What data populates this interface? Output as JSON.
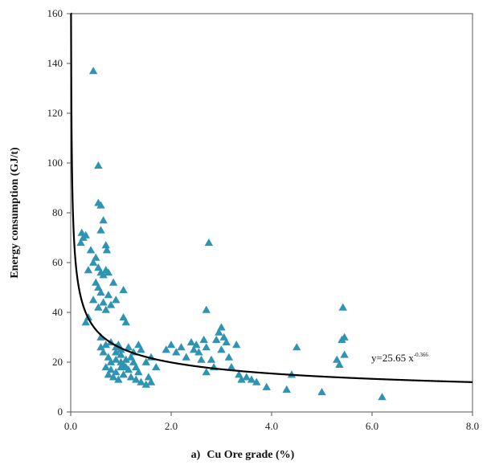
{
  "chart_data": {
    "type": "scatter",
    "title": "",
    "xlabel": "Cu Ore grade (%)",
    "xlabel_prefix": "a)",
    "ylabel": "Energy consumption (GJ/t)",
    "xlim": [
      0,
      8
    ],
    "ylim": [
      0,
      160
    ],
    "x_ticks": [
      0,
      2,
      4,
      6,
      8
    ],
    "x_tick_labels": [
      "0.0",
      "2.0",
      "4.0",
      "6.0",
      "8.0"
    ],
    "y_ticks": [
      0,
      20,
      40,
      60,
      80,
      100,
      120,
      140,
      160
    ],
    "y_tick_labels": [
      "0",
      "20",
      "40",
      "60",
      "80",
      "100",
      "120",
      "140",
      "160"
    ],
    "grid": false,
    "marker_color": "#2f93b3",
    "trend_color": "#000000",
    "series": [
      {
        "marker": "triangle",
        "points": [
          [
            0.45,
            137
          ],
          [
            0.55,
            99
          ],
          [
            0.55,
            84
          ],
          [
            0.6,
            83
          ],
          [
            0.22,
            72
          ],
          [
            0.25,
            70
          ],
          [
            0.3,
            71
          ],
          [
            0.2,
            68
          ],
          [
            0.6,
            73
          ],
          [
            0.65,
            77
          ],
          [
            0.7,
            67
          ],
          [
            0.72,
            65
          ],
          [
            0.4,
            65
          ],
          [
            0.45,
            60
          ],
          [
            0.5,
            62
          ],
          [
            0.35,
            57
          ],
          [
            0.55,
            58
          ],
          [
            0.6,
            56
          ],
          [
            0.7,
            57
          ],
          [
            0.75,
            56
          ],
          [
            0.65,
            55
          ],
          [
            0.5,
            52
          ],
          [
            0.55,
            50
          ],
          [
            0.6,
            48
          ],
          [
            0.75,
            47
          ],
          [
            0.85,
            52
          ],
          [
            0.45,
            45
          ],
          [
            0.55,
            42
          ],
          [
            0.65,
            44
          ],
          [
            0.7,
            41
          ],
          [
            0.8,
            43
          ],
          [
            0.9,
            45
          ],
          [
            1.05,
            49
          ],
          [
            1.05,
            38
          ],
          [
            1.1,
            36
          ],
          [
            0.35,
            38
          ],
          [
            0.3,
            36
          ],
          [
            0.6,
            30
          ],
          [
            0.6,
            26
          ],
          [
            0.7,
            27
          ],
          [
            0.8,
            28
          ],
          [
            0.9,
            26
          ],
          [
            0.65,
            24
          ],
          [
            0.75,
            22
          ],
          [
            0.8,
            20
          ],
          [
            0.9,
            24
          ],
          [
            1.0,
            23
          ],
          [
            0.7,
            18
          ],
          [
            0.8,
            17
          ],
          [
            0.9,
            16
          ],
          [
            1.0,
            18
          ],
          [
            1.1,
            21
          ],
          [
            0.75,
            15
          ],
          [
            0.85,
            14
          ],
          [
            0.95,
            13
          ],
          [
            1.05,
            15
          ],
          [
            1.15,
            17
          ],
          [
            1.2,
            14
          ],
          [
            1.3,
            13
          ],
          [
            1.4,
            12
          ],
          [
            1.5,
            11
          ],
          [
            1.6,
            12
          ],
          [
            1.55,
            14
          ],
          [
            0.9,
            21
          ],
          [
            1.0,
            20
          ],
          [
            1.05,
            19
          ],
          [
            1.1,
            18
          ],
          [
            1.2,
            22
          ],
          [
            1.25,
            20
          ],
          [
            1.3,
            18
          ],
          [
            1.35,
            16
          ],
          [
            1.15,
            26
          ],
          [
            1.25,
            24
          ],
          [
            1.35,
            27
          ],
          [
            1.4,
            25
          ],
          [
            1.5,
            20
          ],
          [
            1.6,
            22
          ],
          [
            1.7,
            18
          ],
          [
            0.95,
            27
          ],
          [
            1.0,
            25
          ],
          [
            1.9,
            25
          ],
          [
            2.0,
            27
          ],
          [
            2.1,
            24
          ],
          [
            2.2,
            26
          ],
          [
            2.3,
            22
          ],
          [
            2.4,
            28
          ],
          [
            2.45,
            25
          ],
          [
            2.5,
            27
          ],
          [
            2.55,
            24
          ],
          [
            2.6,
            21
          ],
          [
            2.7,
            41
          ],
          [
            2.75,
            68
          ],
          [
            2.65,
            29
          ],
          [
            2.7,
            26
          ],
          [
            2.8,
            21
          ],
          [
            2.85,
            18
          ],
          [
            2.7,
            16
          ],
          [
            2.9,
            29
          ],
          [
            2.95,
            32
          ],
          [
            3.0,
            34
          ],
          [
            3.05,
            30
          ],
          [
            3.1,
            28
          ],
          [
            3.0,
            25
          ],
          [
            3.15,
            22
          ],
          [
            3.2,
            18
          ],
          [
            3.3,
            27
          ],
          [
            3.35,
            15
          ],
          [
            3.4,
            13
          ],
          [
            3.5,
            14
          ],
          [
            3.6,
            13
          ],
          [
            3.7,
            12
          ],
          [
            3.9,
            10
          ],
          [
            4.3,
            9
          ],
          [
            4.4,
            15
          ],
          [
            4.5,
            26
          ],
          [
            5.0,
            8
          ],
          [
            5.3,
            21
          ],
          [
            5.35,
            19
          ],
          [
            5.4,
            29
          ],
          [
            5.45,
            23
          ],
          [
            5.45,
            30
          ],
          [
            5.42,
            42
          ],
          [
            6.2,
            6
          ]
        ]
      }
    ],
    "trendline": {
      "type": "power",
      "a": 25.65,
      "b": -0.366,
      "equation_text": "y=25.65 x",
      "equation_exponent": "-0.366"
    }
  }
}
